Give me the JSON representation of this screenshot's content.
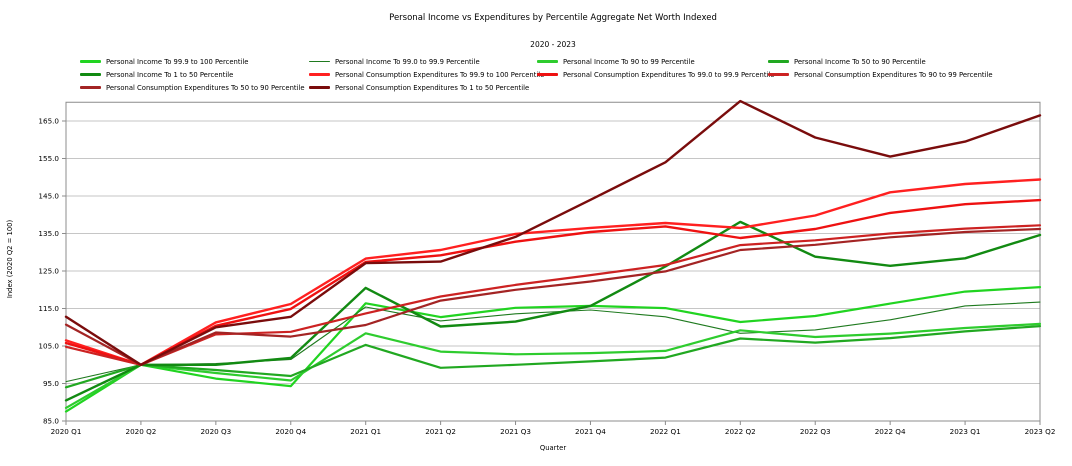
{
  "chart_data": {
    "type": "line",
    "title": "Personal Income vs Expenditures by Percentile Aggregate Net Worth Indexed",
    "subtitle": "2020 - 2023",
    "xlabel": "Quarter",
    "ylabel": "Index (2020 Q2 = 100)",
    "ylim": [
      85,
      170
    ],
    "yticks": [
      85,
      95,
      105,
      115,
      125,
      135,
      145,
      155,
      165
    ],
    "grid": true,
    "legend_position": "top-left, 4 columns",
    "categories": [
      "2020 Q1",
      "2020 Q2",
      "2020 Q3",
      "2020 Q4",
      "2021 Q1",
      "2021 Q2",
      "2021 Q3",
      "2021 Q4",
      "2022 Q1",
      "2022 Q2",
      "2022 Q3",
      "2022 Q4",
      "2023 Q1",
      "2023 Q2"
    ],
    "series": [
      {
        "name": "Personal Income To 99.9 to 100 Percentile",
        "color": "#21d421",
        "width": 2.2,
        "values": [
          87.5,
          100,
          96.3,
          94.3,
          116.4,
          112.7,
          115.2,
          115.7,
          115.1,
          111.4,
          113.0,
          116.3,
          119.5,
          120.7
        ]
      },
      {
        "name": "Personal Income To 99.0 to 99.9 Percentile",
        "color": "#1f7a1f",
        "width": 1.1,
        "values": [
          95.5,
          100,
          100.3,
          101.4,
          115.4,
          111.7,
          113.6,
          114.6,
          112.8,
          108.4,
          109.3,
          112.0,
          115.7,
          116.7
        ]
      },
      {
        "name": "Personal Income To 90 to 99 Percentile",
        "color": "#2ecc2e",
        "width": 2.2,
        "values": [
          88.5,
          100,
          97.8,
          95.8,
          108.4,
          103.5,
          102.8,
          103.1,
          103.7,
          109.2,
          107.4,
          108.3,
          109.8,
          110.9
        ]
      },
      {
        "name": "Personal Income To 50 to 90 Percentile",
        "color": "#21a821",
        "width": 2.2,
        "values": [
          94.0,
          100,
          98.6,
          97.0,
          105.3,
          99.2,
          100.0,
          100.9,
          101.9,
          107.0,
          105.9,
          107.1,
          108.9,
          110.3
        ]
      },
      {
        "name": "Personal Income To 1 to 50 Percentile",
        "color": "#128a12",
        "width": 2.4,
        "values": [
          90.5,
          100,
          100.0,
          101.8,
          120.5,
          110.2,
          111.5,
          115.7,
          126.2,
          138.1,
          128.8,
          126.4,
          128.4,
          134.6
        ]
      },
      {
        "name": "Personal Consumption Expenditures To 99.9 to 100 Percentile",
        "color": "#ff2020",
        "width": 2.4,
        "values": [
          106.5,
          100,
          111.3,
          116.2,
          128.3,
          130.6,
          134.9,
          136.5,
          137.8,
          136.5,
          139.8,
          146.0,
          148.2,
          149.4
        ]
      },
      {
        "name": "Personal Consumption Expenditures To 99.0 to 99.9 Percentile",
        "color": "#ee1111",
        "width": 2.4,
        "values": [
          105.8,
          100,
          110.4,
          114.9,
          127.4,
          129.2,
          132.8,
          135.4,
          136.9,
          133.8,
          136.2,
          140.5,
          142.8,
          143.9
        ]
      },
      {
        "name": "Personal Consumption Expenditures To 90 to 99 Percentile",
        "color": "#cc2222",
        "width": 2.2,
        "values": [
          104.8,
          100,
          108.1,
          108.8,
          113.7,
          118.2,
          121.3,
          123.9,
          126.6,
          131.9,
          133.2,
          135.0,
          136.3,
          137.2
        ]
      },
      {
        "name": "Personal Consumption Expenditures To 50 to 90 Percentile",
        "color": "#a32424",
        "width": 2.2,
        "values": [
          110.7,
          100,
          108.6,
          107.5,
          110.6,
          117.1,
          120.0,
          122.2,
          124.9,
          130.6,
          132.0,
          134.0,
          135.4,
          136.2
        ]
      },
      {
        "name": "Personal Consumption Expenditures To 1 to 50 Percentile",
        "color": "#7a0c0c",
        "width": 2.4,
        "values": [
          112.8,
          100,
          110.0,
          112.8,
          127.1,
          127.5,
          134.1,
          144.0,
          154.0,
          170.3,
          160.6,
          155.5,
          159.5,
          166.5
        ]
      }
    ]
  }
}
